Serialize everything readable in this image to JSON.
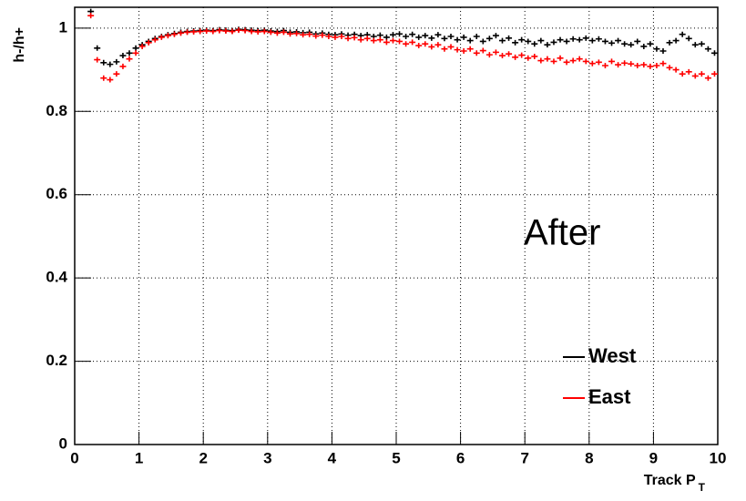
{
  "chart_data": {
    "type": "scatter",
    "y_label": "h-/h+",
    "x_label": "Track P",
    "x_label_subscript": "T",
    "annotation": "After",
    "xlim": [
      0,
      10
    ],
    "ylim": [
      0,
      1.05
    ],
    "xticks": [
      0,
      1,
      2,
      3,
      4,
      5,
      6,
      7,
      8,
      9,
      10
    ],
    "yticks": [
      0,
      0.2,
      0.4,
      0.6,
      0.8,
      1
    ],
    "grid": true,
    "legend": "lower right",
    "x": [
      0.25,
      0.35,
      0.45,
      0.55,
      0.65,
      0.75,
      0.85,
      0.95,
      1.05,
      1.15,
      1.25,
      1.35,
      1.45,
      1.55,
      1.65,
      1.75,
      1.85,
      1.95,
      2.05,
      2.15,
      2.25,
      2.35,
      2.45,
      2.55,
      2.65,
      2.75,
      2.85,
      2.95,
      3.05,
      3.15,
      3.25,
      3.35,
      3.45,
      3.55,
      3.65,
      3.75,
      3.85,
      3.95,
      4.05,
      4.15,
      4.25,
      4.35,
      4.45,
      4.55,
      4.65,
      4.75,
      4.85,
      4.95,
      5.05,
      5.15,
      5.25,
      5.35,
      5.45,
      5.55,
      5.65,
      5.75,
      5.85,
      5.95,
      6.05,
      6.15,
      6.25,
      6.35,
      6.45,
      6.55,
      6.65,
      6.75,
      6.85,
      6.95,
      7.05,
      7.15,
      7.25,
      7.35,
      7.45,
      7.55,
      7.65,
      7.75,
      7.85,
      7.95,
      8.05,
      8.15,
      8.25,
      8.35,
      8.45,
      8.55,
      8.65,
      8.75,
      8.85,
      8.95,
      9.05,
      9.15,
      9.25,
      9.35,
      9.45,
      9.55,
      9.65,
      9.75,
      9.85,
      9.95
    ],
    "series": [
      {
        "name": "West",
        "color": "#000000",
        "values": [
          1.04,
          0.952,
          0.917,
          0.913,
          0.919,
          0.934,
          0.94,
          0.952,
          0.96,
          0.968,
          0.975,
          0.98,
          0.984,
          0.987,
          0.99,
          0.992,
          0.993,
          0.994,
          0.995,
          0.994,
          0.996,
          0.995,
          0.994,
          0.997,
          0.996,
          0.995,
          0.994,
          0.995,
          0.993,
          0.992,
          0.994,
          0.99,
          0.991,
          0.989,
          0.99,
          0.986,
          0.988,
          0.985,
          0.984,
          0.986,
          0.983,
          0.985,
          0.982,
          0.984,
          0.98,
          0.983,
          0.978,
          0.984,
          0.986,
          0.98,
          0.985,
          0.978,
          0.982,
          0.976,
          0.984,
          0.975,
          0.98,
          0.972,
          0.978,
          0.97,
          0.98,
          0.968,
          0.975,
          0.982,
          0.97,
          0.976,
          0.965,
          0.972,
          0.968,
          0.962,
          0.97,
          0.96,
          0.966,
          0.972,
          0.968,
          0.974,
          0.972,
          0.976,
          0.97,
          0.974,
          0.968,
          0.964,
          0.97,
          0.962,
          0.96,
          0.968,
          0.956,
          0.962,
          0.95,
          0.945,
          0.965,
          0.97,
          0.985,
          0.975,
          0.96,
          0.962,
          0.95,
          0.94
        ]
      },
      {
        "name": "East",
        "color": "#ff0000",
        "values": [
          1.03,
          0.924,
          0.88,
          0.876,
          0.89,
          0.908,
          0.926,
          0.94,
          0.956,
          0.965,
          0.972,
          0.978,
          0.982,
          0.985,
          0.988,
          0.99,
          0.991,
          0.992,
          0.993,
          0.992,
          0.994,
          0.993,
          0.992,
          0.995,
          0.994,
          0.992,
          0.991,
          0.992,
          0.99,
          0.988,
          0.99,
          0.986,
          0.987,
          0.984,
          0.985,
          0.981,
          0.983,
          0.98,
          0.978,
          0.98,
          0.975,
          0.977,
          0.972,
          0.975,
          0.97,
          0.972,
          0.966,
          0.97,
          0.968,
          0.962,
          0.966,
          0.958,
          0.962,
          0.955,
          0.96,
          0.95,
          0.955,
          0.948,
          0.945,
          0.95,
          0.94,
          0.946,
          0.936,
          0.942,
          0.934,
          0.938,
          0.93,
          0.935,
          0.928,
          0.932,
          0.922,
          0.926,
          0.92,
          0.928,
          0.918,
          0.922,
          0.926,
          0.92,
          0.915,
          0.918,
          0.91,
          0.92,
          0.912,
          0.916,
          0.914,
          0.91,
          0.912,
          0.908,
          0.91,
          0.915,
          0.905,
          0.9,
          0.89,
          0.895,
          0.885,
          0.89,
          0.88,
          0.89
        ]
      }
    ]
  }
}
